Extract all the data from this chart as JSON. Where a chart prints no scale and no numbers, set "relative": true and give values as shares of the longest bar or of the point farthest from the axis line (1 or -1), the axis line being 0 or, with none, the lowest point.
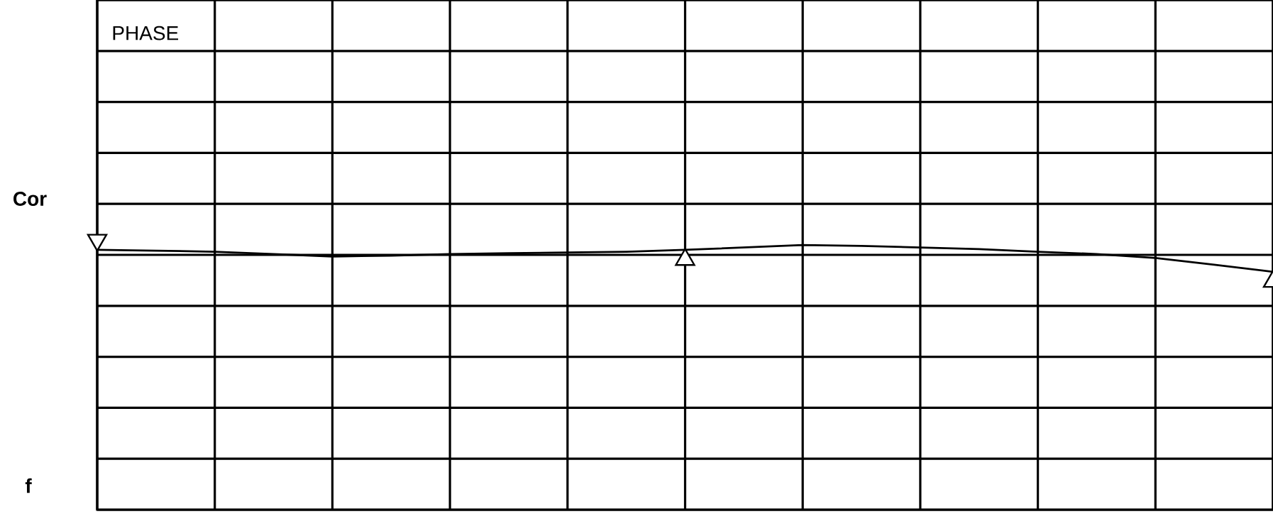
{
  "chart_data": {
    "type": "line",
    "title": "PHASE",
    "ylabel": "Cor",
    "annotations": [
      "f"
    ],
    "relative": true,
    "grid": true,
    "tick_labels": false,
    "categories": [
      null,
      null,
      null,
      null,
      null,
      null,
      null,
      null,
      null,
      null,
      null,
      null,
      null,
      null,
      null,
      null,
      null,
      null,
      null,
      null,
      null
    ],
    "series": [
      {
        "color": "#000000",
        "values": [
          0.982,
          0.979,
          0.975,
          0.966,
          0.957,
          0.96,
          0.966,
          0.969,
          0.972,
          0.975,
          0.982,
          0.991,
          1,
          0.997,
          0.991,
          0.985,
          0.975,
          0.966,
          0.951,
          0.926,
          0.899
        ]
      }
    ]
  }
}
